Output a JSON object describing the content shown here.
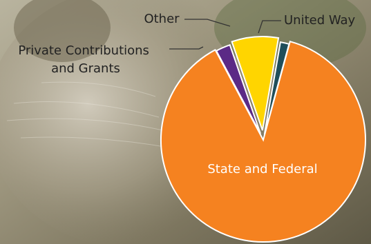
{
  "chart_data": {
    "type": "pie",
    "title": "",
    "slices": [
      {
        "label": "State and Federal",
        "value": 88,
        "color": "#f58220"
      },
      {
        "label": "Private Contributions and Grants",
        "value": 2.5,
        "color": "#5b2a86"
      },
      {
        "label": "Other",
        "value": 8,
        "color": "#ffd500"
      },
      {
        "label": "United Way",
        "value": 1.5,
        "color": "#1f4e5a"
      }
    ],
    "label_lines": [
      "Private Contributions",
      "and Grants"
    ],
    "legend": "callout labels"
  },
  "colors": {
    "label_dark": "#222222",
    "label_light": "#ffffff",
    "leader": "#333333"
  }
}
